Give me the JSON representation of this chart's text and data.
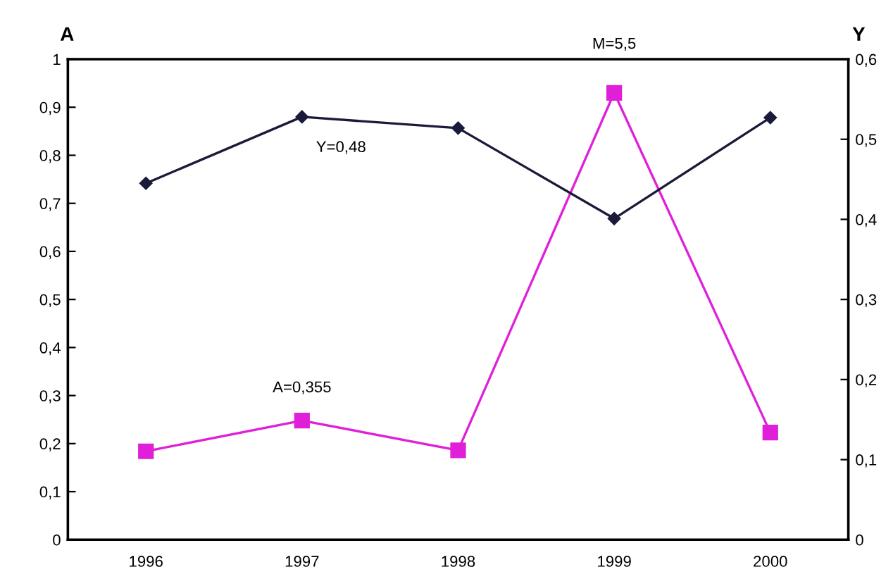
{
  "chart_data": {
    "type": "line",
    "categories": [
      "1996",
      "1997",
      "1998",
      "1999",
      "2000"
    ],
    "ylabel": "A",
    "y2label": "Y",
    "ylim": [
      0,
      1
    ],
    "yticks": [
      0,
      {
        "value": 0.1,
        "label": "0,1"
      },
      {
        "value": 0.2,
        "label": "0,2"
      },
      {
        "value": 0.3,
        "label": "0,3"
      },
      {
        "value": 0.4,
        "label": "0,4"
      },
      {
        "value": 0.5,
        "label": "0,5"
      },
      {
        "value": 0.6,
        "label": "0,6"
      },
      {
        "value": 0.7,
        "label": "0,7"
      },
      {
        "value": 0.8,
        "label": "0,8"
      },
      {
        "value": 0.9,
        "label": "0,9"
      },
      1
    ],
    "y2lim": [
      0,
      0.6
    ],
    "y2ticks": [
      0,
      {
        "value": 0.1,
        "label": "0,1"
      },
      {
        "value": 0.2,
        "label": "0,2"
      },
      {
        "value": 0.3,
        "label": "0,3"
      },
      {
        "value": 0.4,
        "label": "0,4"
      },
      {
        "value": 0.5,
        "label": "0,5"
      },
      {
        "value": 0.6,
        "label": "0,6"
      }
    ],
    "series": [
      {
        "color": "#1a1a3a",
        "marker": "diamond",
        "axis": "y2",
        "values": [
          0.445,
          0.528,
          0.514,
          0.401,
          0.527
        ]
      },
      {
        "color": "#e020d8",
        "marker": "square",
        "values": [
          0.184,
          0.248,
          0.186,
          0.93,
          0.223
        ]
      }
    ],
    "annotations": [
      "Y=0,48",
      "A=0,355",
      "M=5,5"
    ],
    "grid": false,
    "legend": false
  }
}
